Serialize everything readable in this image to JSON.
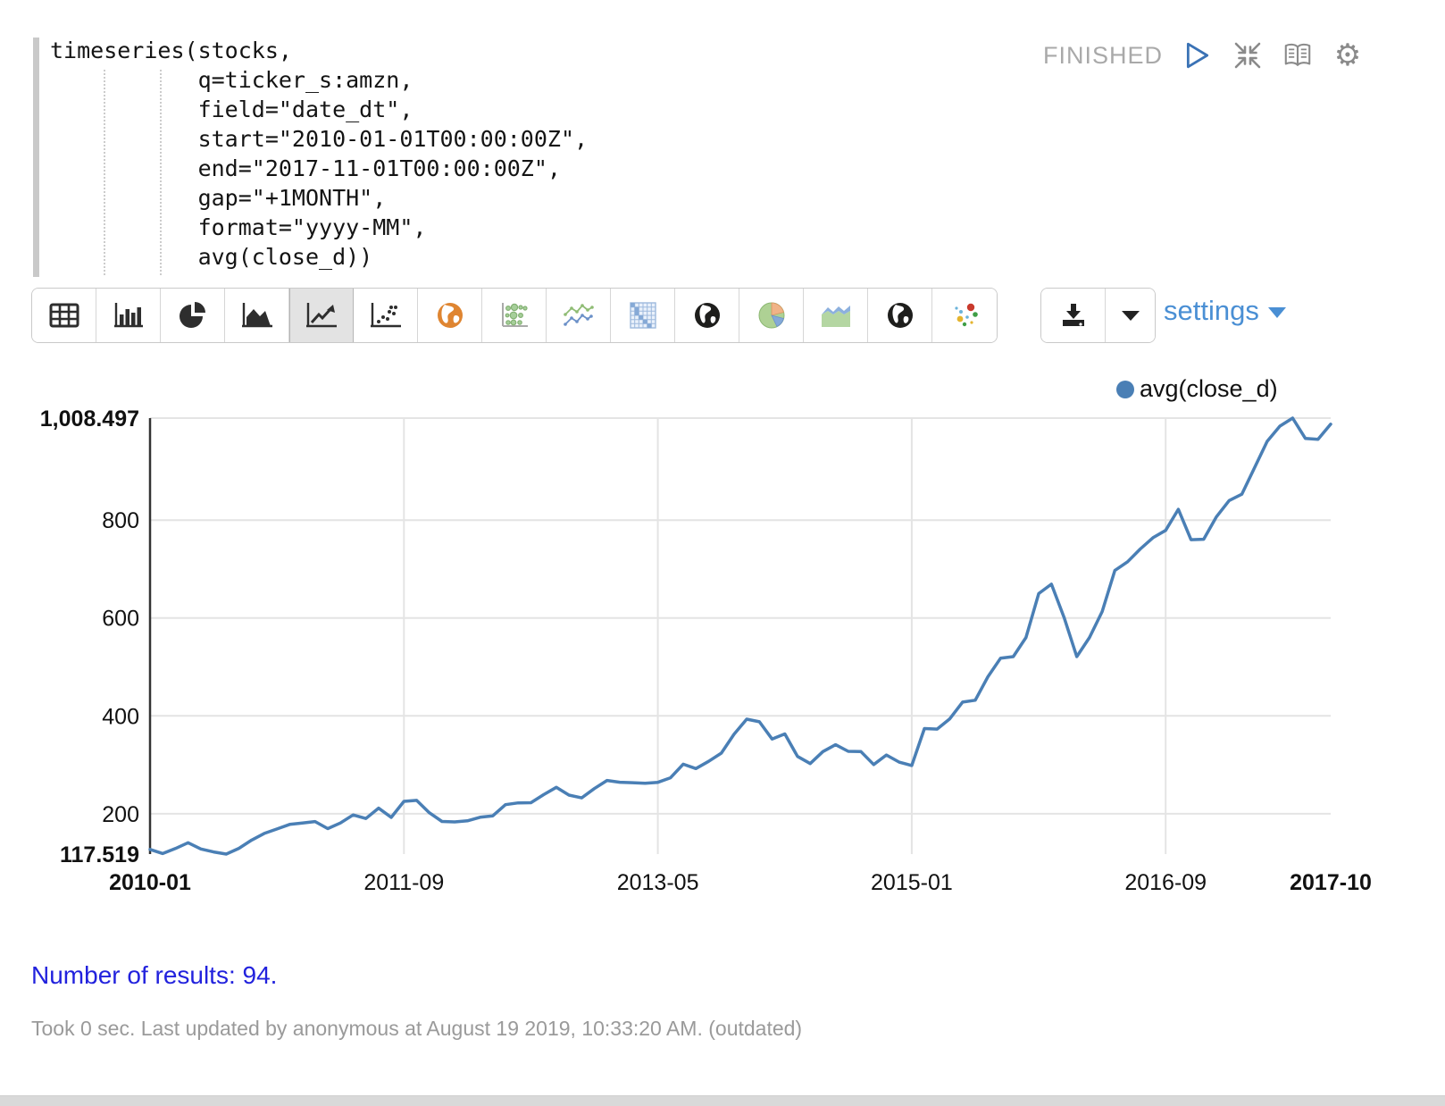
{
  "code": {
    "text": "timeseries(stocks,\n           q=ticker_s:amzn,\n           field=\"date_dt\",\n           start=\"2010-01-01T00:00:00Z\",\n           end=\"2017-11-01T00:00:00Z\",\n           gap=\"+1MONTH\",\n           format=\"yyyy-MM\",\n           avg(close_d))"
  },
  "status": {
    "label": "FINISHED",
    "icons": [
      "play-icon",
      "compress-icon",
      "book-icon",
      "gear-icon"
    ],
    "gear_glyph": "⚙"
  },
  "toolbar": {
    "icons": [
      "table-icon",
      "bar-chart-icon",
      "pie-chart-icon",
      "area-chart-icon",
      "line-chart-icon",
      "scatter-plot-icon",
      "globe-orange-icon",
      "bubble-grid-icon",
      "multi-line-icon",
      "heatmap-grid-icon",
      "globe-dark-icon",
      "pie-color-icon",
      "area-color-icon",
      "globe-dark2-icon",
      "scatter-color-icon"
    ],
    "active_icon": "line-chart-icon",
    "settings_label": "settings"
  },
  "legend": {
    "label": "avg(close_d)",
    "color": "#4a7fb5"
  },
  "results": {
    "text": "Number of results: 94."
  },
  "footer": {
    "text": "Took 0 sec. Last updated by anonymous at August 19 2019, 10:33:20 AM. (outdated)"
  },
  "chart_data": {
    "type": "line",
    "title": "",
    "xlabel": "",
    "ylabel": "",
    "series_name": "avg(close_d)",
    "line_color": "#4a7fb5",
    "grid_color": "#e4e4e4",
    "legend_position": "top-right",
    "ylim": [
      117.519,
      1008.497
    ],
    "ymin_label": "117.519",
    "ymax_label": "1,008.497",
    "yticks": [
      200,
      400,
      600,
      800
    ],
    "xticks": [
      "2010-01",
      "2011-09",
      "2013-05",
      "2015-01",
      "2016-09",
      "2017-10"
    ],
    "categories": [
      "2010-01",
      "2010-02",
      "2010-03",
      "2010-04",
      "2010-05",
      "2010-06",
      "2010-07",
      "2010-08",
      "2010-09",
      "2010-10",
      "2010-11",
      "2010-12",
      "2011-01",
      "2011-02",
      "2011-03",
      "2011-04",
      "2011-05",
      "2011-06",
      "2011-07",
      "2011-08",
      "2011-09",
      "2011-10",
      "2011-11",
      "2011-12",
      "2012-01",
      "2012-02",
      "2012-03",
      "2012-04",
      "2012-05",
      "2012-06",
      "2012-07",
      "2012-08",
      "2012-09",
      "2012-10",
      "2012-11",
      "2012-12",
      "2013-01",
      "2013-02",
      "2013-03",
      "2013-04",
      "2013-05",
      "2013-06",
      "2013-07",
      "2013-08",
      "2013-09",
      "2013-10",
      "2013-11",
      "2013-12",
      "2014-01",
      "2014-02",
      "2014-03",
      "2014-04",
      "2014-05",
      "2014-06",
      "2014-07",
      "2014-08",
      "2014-09",
      "2014-10",
      "2014-11",
      "2014-12",
      "2015-01",
      "2015-02",
      "2015-03",
      "2015-04",
      "2015-05",
      "2015-06",
      "2015-07",
      "2015-08",
      "2015-09",
      "2015-10",
      "2015-11",
      "2015-12",
      "2016-01",
      "2016-02",
      "2016-03",
      "2016-04",
      "2016-05",
      "2016-06",
      "2016-07",
      "2016-08",
      "2016-09",
      "2016-10",
      "2016-11",
      "2016-12",
      "2017-01",
      "2017-02",
      "2017-03",
      "2017-04",
      "2017-05",
      "2017-06",
      "2017-07",
      "2017-08",
      "2017-09",
      "2017-10"
    ],
    "values": [
      127.0,
      118.6,
      128.9,
      140.7,
      127.9,
      121.9,
      117.519,
      129.2,
      146.0,
      159.7,
      168.9,
      178.1,
      180.9,
      183.9,
      169.6,
      181.0,
      197.4,
      190.2,
      211.4,
      192.6,
      225.3,
      227.2,
      202.1,
      184.1,
      183.2,
      185.4,
      192.8,
      195.6,
      218.4,
      222.2,
      222.5,
      238.9,
      253.9,
      238.1,
      232.4,
      251.4,
      267.9,
      264.3,
      263.4,
      262.2,
      264.1,
      273.4,
      301.2,
      292.2,
      307.0,
      323.9,
      362.4,
      393.3,
      388.0,
      352.6,
      363.0,
      317.0,
      302.4,
      327.0,
      341.0,
      327.4,
      327.0,
      300.4,
      320.0,
      305.5,
      298.4,
      374.0,
      373.0,
      394.0,
      428.0,
      432.0,
      480.0,
      518.0,
      521.0,
      560.0,
      650.0,
      669.0,
      601.0,
      521.0,
      560.0,
      613.0,
      697.0,
      715.0,
      741.0,
      764.0,
      779.0,
      822.0,
      760.0,
      761.0,
      807.0,
      840.0,
      853.0,
      907.0,
      961.0,
      992.0,
      1008.497,
      967.0,
      965.0,
      996.0
    ]
  }
}
